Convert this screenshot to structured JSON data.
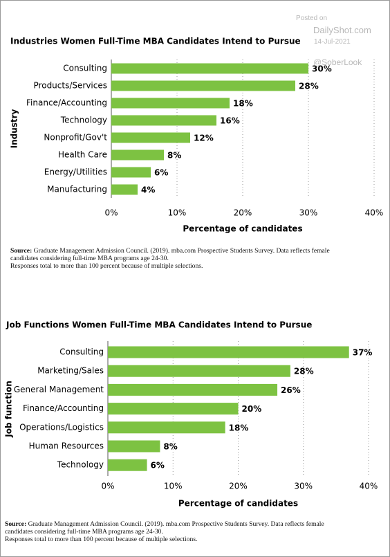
{
  "watermark": {
    "posted": "Posted on",
    "site": "DailyShot.com",
    "date": "14-Jul-2021",
    "handle": "@SoberLook"
  },
  "chart_data": [
    {
      "type": "bar",
      "orientation": "horizontal",
      "title": "Industries Women Full-Time MBA Candidates Intend to Pursue",
      "x_label": "Percentage of candidates",
      "y_label": "Industry",
      "categories": [
        "Consulting",
        "Products/Services",
        "Finance/Accounting",
        "Technology",
        "Nonprofit/Gov't",
        "Health Care",
        "Energy/Utilities",
        "Manufacturing"
      ],
      "values": [
        30,
        28,
        18,
        16,
        12,
        8,
        6,
        4
      ],
      "value_labels": [
        "30%",
        "28%",
        "18%",
        "16%",
        "12%",
        "8%",
        "6%",
        "4%"
      ],
      "color": "#7dc242",
      "xlim": [
        0,
        40
      ],
      "xticks": [
        {
          "value": 0,
          "label": "0%"
        },
        {
          "value": 10,
          "label": "10%"
        },
        {
          "value": 20,
          "label": "20%"
        },
        {
          "value": 30,
          "label": "30%"
        },
        {
          "value": 40,
          "label": "40%"
        }
      ],
      "grid": true,
      "source_label": "Source:",
      "source": "Graduate Management Admission Council. (2019). mba.com Prospective Students Survey. Data reflects female candidates considering full-time MBA programs age 24-30.",
      "note": "Responses total to more than 100 percent because of multiple selections."
    },
    {
      "type": "bar",
      "orientation": "horizontal",
      "title": "Job Functions Women Full-Time MBA Candidates Intend to Pursue",
      "x_label": "Percentage of candidates",
      "y_label": "Job function",
      "categories": [
        "Consulting",
        "Marketing/Sales",
        "General Management",
        "Finance/Accounting",
        "Operations/Logistics",
        "Human Resources",
        "Technology"
      ],
      "values": [
        37,
        28,
        26,
        20,
        18,
        8,
        6
      ],
      "value_labels": [
        "37%",
        "28%",
        "26%",
        "20%",
        "18%",
        "8%",
        "6%"
      ],
      "color": "#7dc242",
      "xlim": [
        0,
        40
      ],
      "xticks": [
        {
          "value": 0,
          "label": "0%"
        },
        {
          "value": 10,
          "label": "10%"
        },
        {
          "value": 20,
          "label": "20%"
        },
        {
          "value": 30,
          "label": "30%"
        },
        {
          "value": 40,
          "label": "40%"
        }
      ],
      "grid": true,
      "source_label": "Source:",
      "source": "Graduate Management Admission Council. (2019). mba.com Prospective Students Survey. Data reflects female candidates considering full-time MBA programs age 24-30.",
      "note": "Responses total to more than 100 percent because of multiple selections."
    }
  ]
}
